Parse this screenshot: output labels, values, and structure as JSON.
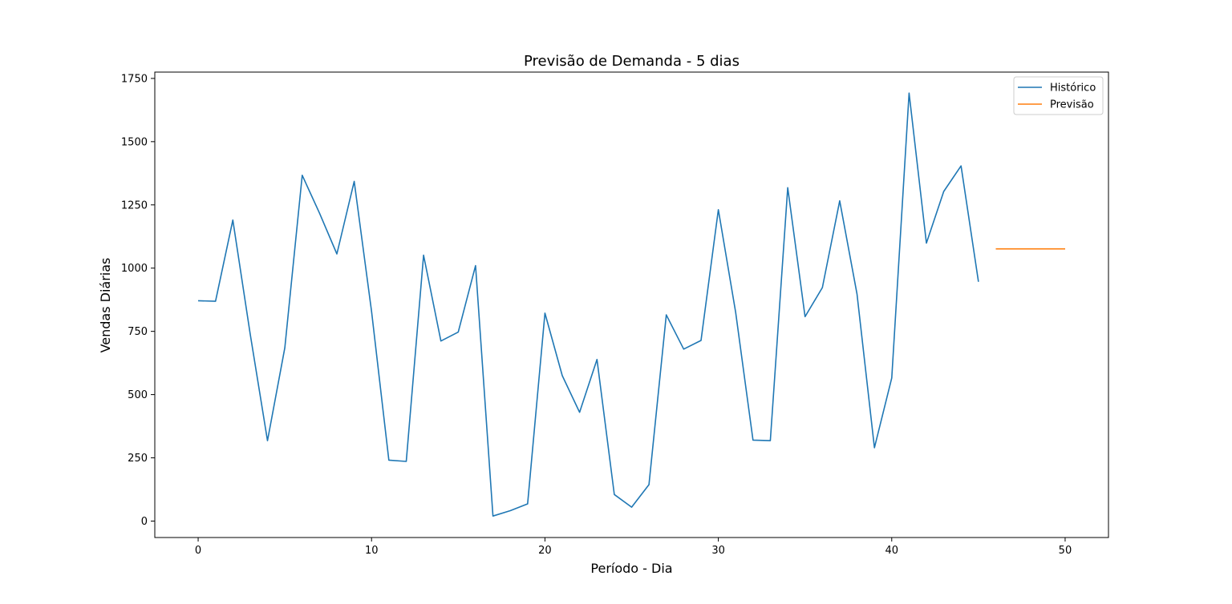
{
  "chart_data": {
    "type": "line",
    "title": "Previsão de Demanda - 5 dias",
    "xlabel": "Período - Dia",
    "ylabel": "Vendas Diárias",
    "xlim": [
      -2.5,
      52.5
    ],
    "ylim": [
      -65,
      1775
    ],
    "xticks": [
      0,
      10,
      20,
      30,
      40,
      50
    ],
    "yticks": [
      0,
      250,
      500,
      750,
      1000,
      1250,
      1500,
      1750
    ],
    "legend_position": "top-right",
    "grid": false,
    "series": [
      {
        "name": "Histórico",
        "color": "#1f77b4",
        "x": [
          0,
          1,
          2,
          3,
          4,
          5,
          6,
          7,
          8,
          9,
          10,
          11,
          12,
          13,
          14,
          15,
          16,
          17,
          18,
          19,
          20,
          21,
          22,
          23,
          24,
          25,
          26,
          27,
          28,
          29,
          30,
          31,
          32,
          33,
          34,
          35,
          36,
          37,
          38,
          39,
          40,
          41,
          42,
          43,
          44,
          45
        ],
        "y": [
          871,
          869,
          1190,
          740,
          318,
          685,
          1367,
          1217,
          1056,
          1343,
          830,
          241,
          236,
          1051,
          712,
          747,
          1010,
          20,
          41,
          68,
          822,
          575,
          430,
          639,
          105,
          55,
          144,
          815,
          680,
          714,
          1231,
          825,
          320,
          318,
          1318,
          808,
          923,
          1266,
          897,
          290,
          566,
          1692,
          1099,
          1303,
          1404,
          946
        ]
      },
      {
        "name": "Previsão",
        "color": "#ff7f0e",
        "x": [
          46,
          47,
          48,
          49,
          50
        ],
        "y": [
          1076,
          1076,
          1076,
          1076,
          1076
        ]
      }
    ]
  }
}
